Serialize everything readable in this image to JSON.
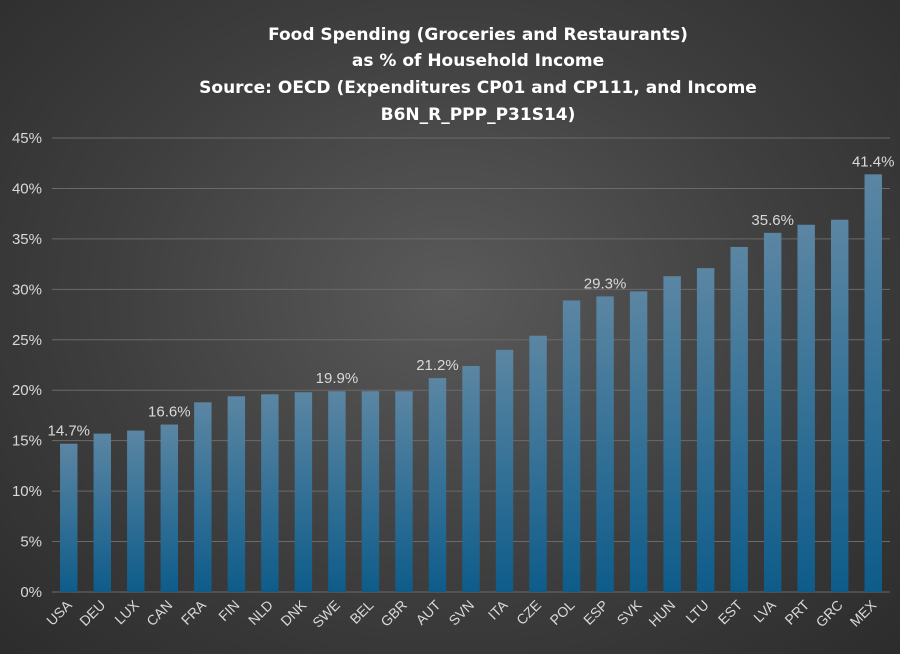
{
  "chart_data": {
    "type": "bar",
    "title": [
      "Food Spending (Groceries and Restaurants)",
      "as % of Household Income",
      "Source: OECD (Expenditures CP01 and CP111, and Income",
      "B6N_R_PPP_P31S14)"
    ],
    "categories": [
      "USA",
      "DEU",
      "LUX",
      "CAN",
      "FRA",
      "FIN",
      "NLD",
      "DNK",
      "SWE",
      "BEL",
      "GBR",
      "AUT",
      "SVN",
      "ITA",
      "CZE",
      "POL",
      "ESP",
      "SVK",
      "HUN",
      "LTU",
      "EST",
      "LVA",
      "PRT",
      "GRC",
      "MEX"
    ],
    "values": [
      14.7,
      15.7,
      16.0,
      16.6,
      18.8,
      19.4,
      19.6,
      19.8,
      19.9,
      19.9,
      19.9,
      21.2,
      22.4,
      24.0,
      25.4,
      28.9,
      29.3,
      29.8,
      31.3,
      32.1,
      34.2,
      35.6,
      36.4,
      36.9,
      41.4
    ],
    "data_labels": [
      {
        "category": "USA",
        "text": "14.7%"
      },
      {
        "category": "CAN",
        "text": "16.6%"
      },
      {
        "category": "SWE",
        "text": "19.9%"
      },
      {
        "category": "AUT",
        "text": "21.2%"
      },
      {
        "category": "ESP",
        "text": "29.3%"
      },
      {
        "category": "LVA",
        "text": "35.6%"
      },
      {
        "category": "MEX",
        "text": "41.4%"
      }
    ],
    "yticks": [
      "0%",
      "5%",
      "10%",
      "15%",
      "20%",
      "25%",
      "30%",
      "35%",
      "40%",
      "45%"
    ],
    "ylim": [
      0,
      45
    ],
    "ystep": 5,
    "grid": true,
    "legend": "none",
    "colors": {
      "bar_top": "#5b86a3",
      "bar_bottom": "#0e5c8a",
      "grid": "#6a6a6a",
      "text": "#d9d9d9"
    }
  }
}
